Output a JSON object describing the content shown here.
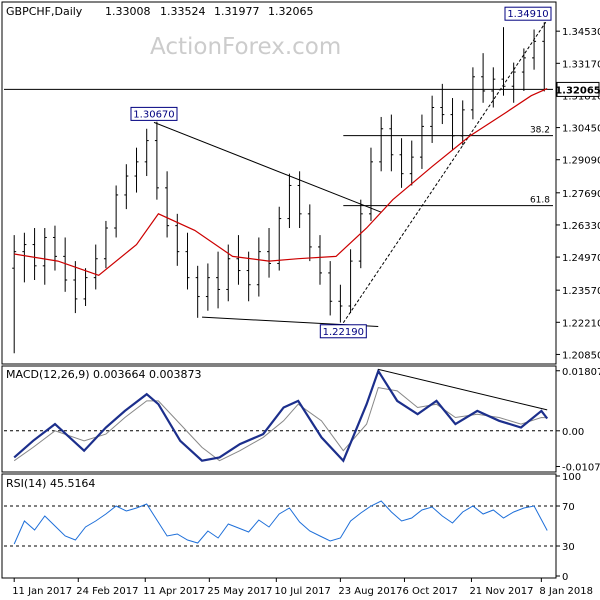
{
  "chart_data": [
    {
      "type": "candlestick",
      "title": "GBPCHF,Daily",
      "ohlc_header": [
        "1.33008",
        "1.33524",
        "1.31977",
        "1.32065"
      ],
      "watermark": "ActionForex.com",
      "y_ticks": [
        "1.34530",
        "1.33170",
        "1.31810",
        "1.30450",
        "1.29090",
        "1.27690",
        "1.26330",
        "1.24970",
        "1.23570",
        "1.22210",
        "1.20850"
      ],
      "y_tick_values": [
        1.3453,
        1.3317,
        1.3181,
        1.3045,
        1.2909,
        1.2769,
        1.2633,
        1.2497,
        1.2357,
        1.2221,
        1.2085
      ],
      "ylim": [
        1.2053,
        1.3568
      ],
      "current_price": "1.32065",
      "current_price_value": 1.32065,
      "high_labels": [
        {
          "text": "1.34910",
          "value": 1.3491,
          "date": "2018-01-11"
        },
        {
          "text": "1.30670",
          "value": 1.3067,
          "date": "2017-04-17"
        },
        {
          "text": "1.22190",
          "value": 1.2219,
          "date": "2017-08-25"
        }
      ],
      "fib_levels": [
        {
          "label": "38.2",
          "value": 1.3011,
          "start": "2017-08-25"
        },
        {
          "label": "61.8",
          "value": 1.2715,
          "start": "2017-08-25"
        }
      ],
      "trendlines": [
        {
          "style": "solid",
          "from": {
            "date": "2017-04-17",
            "value": 1.3067
          },
          "to": {
            "date": "2017-09-20",
            "value": 1.2687
          }
        },
        {
          "style": "solid",
          "from": {
            "date": "2017-05-20",
            "value": 1.2243
          },
          "to": {
            "date": "2017-09-18",
            "value": 1.2203
          }
        },
        {
          "style": "dashed",
          "from": {
            "date": "2017-08-25",
            "value": 1.2219
          },
          "to": {
            "date": "2018-01-11",
            "value": 1.3491
          }
        }
      ],
      "series": [
        {
          "name": "",
          "color": "#cc0000",
          "x": [
            "2017-01-11",
            "2017-02-10",
            "2017-03-10",
            "2017-04-05",
            "2017-04-20",
            "2017-05-15",
            "2017-06-10",
            "2017-07-05",
            "2017-07-25",
            "2017-08-20",
            "2017-09-10",
            "2017-09-28",
            "2017-10-25",
            "2017-11-20",
            "2017-12-15",
            "2018-01-01",
            "2018-01-12"
          ],
          "values": [
            1.251,
            1.248,
            1.242,
            1.255,
            1.268,
            1.261,
            1.25,
            1.248,
            1.249,
            1.25,
            1.262,
            1.274,
            1.288,
            1.301,
            1.311,
            1.318,
            1.321
          ]
        }
      ],
      "candles": [
        [
          "2017-01-11",
          1.245,
          1.259,
          1.209,
          1.252
        ],
        [
          "2017-01-18",
          1.252,
          1.26,
          1.239,
          1.255
        ],
        [
          "2017-01-25",
          1.255,
          1.262,
          1.24,
          1.246
        ],
        [
          "2017-02-01",
          1.246,
          1.262,
          1.238,
          1.258
        ],
        [
          "2017-02-08",
          1.258,
          1.263,
          1.244,
          1.25
        ],
        [
          "2017-02-15",
          1.25,
          1.258,
          1.235,
          1.24
        ],
        [
          "2017-02-22",
          1.24,
          1.248,
          1.226,
          1.232
        ],
        [
          "2017-03-01",
          1.232,
          1.245,
          1.229,
          1.241
        ],
        [
          "2017-03-08",
          1.241,
          1.255,
          1.236,
          1.249
        ],
        [
          "2017-03-15",
          1.249,
          1.265,
          1.245,
          1.262
        ],
        [
          "2017-03-22",
          1.262,
          1.28,
          1.258,
          1.276
        ],
        [
          "2017-03-29",
          1.276,
          1.289,
          1.27,
          1.284
        ],
        [
          "2017-04-05",
          1.284,
          1.296,
          1.277,
          1.29
        ],
        [
          "2017-04-12",
          1.29,
          1.304,
          1.284,
          1.299
        ],
        [
          "2017-04-19",
          1.299,
          1.307,
          1.274,
          1.279
        ],
        [
          "2017-04-26",
          1.279,
          1.286,
          1.258,
          1.263
        ],
        [
          "2017-05-03",
          1.263,
          1.268,
          1.246,
          1.252
        ],
        [
          "2017-05-10",
          1.252,
          1.26,
          1.236,
          1.241
        ],
        [
          "2017-05-17",
          1.241,
          1.246,
          1.224,
          1.233
        ],
        [
          "2017-05-24",
          1.233,
          1.247,
          1.227,
          1.241
        ],
        [
          "2017-05-31",
          1.241,
          1.252,
          1.228,
          1.236
        ],
        [
          "2017-06-07",
          1.236,
          1.255,
          1.231,
          1.249
        ],
        [
          "2017-06-14",
          1.249,
          1.259,
          1.238,
          1.244
        ],
        [
          "2017-06-21",
          1.244,
          1.252,
          1.231,
          1.238
        ],
        [
          "2017-06-28",
          1.238,
          1.258,
          1.233,
          1.252
        ],
        [
          "2017-07-05",
          1.252,
          1.262,
          1.241,
          1.247
        ],
        [
          "2017-07-12",
          1.247,
          1.271,
          1.244,
          1.266
        ],
        [
          "2017-07-19",
          1.266,
          1.285,
          1.262,
          1.28
        ],
        [
          "2017-07-26",
          1.28,
          1.286,
          1.262,
          1.268
        ],
        [
          "2017-08-02",
          1.268,
          1.272,
          1.248,
          1.254
        ],
        [
          "2017-08-09",
          1.254,
          1.259,
          1.238,
          1.243
        ],
        [
          "2017-08-16",
          1.243,
          1.248,
          1.225,
          1.231
        ],
        [
          "2017-08-23",
          1.231,
          1.238,
          1.222,
          1.229
        ],
        [
          "2017-08-30",
          1.229,
          1.253,
          1.226,
          1.248
        ],
        [
          "2017-09-06",
          1.248,
          1.274,
          1.245,
          1.268
        ],
        [
          "2017-09-13",
          1.268,
          1.296,
          1.265,
          1.29
        ],
        [
          "2017-09-20",
          1.29,
          1.309,
          1.286,
          1.304
        ],
        [
          "2017-09-27",
          1.304,
          1.31,
          1.286,
          1.293
        ],
        [
          "2017-10-04",
          1.293,
          1.3,
          1.279,
          1.285
        ],
        [
          "2017-10-11",
          1.285,
          1.299,
          1.28,
          1.292
        ],
        [
          "2017-10-18",
          1.292,
          1.31,
          1.287,
          1.305
        ],
        [
          "2017-10-25",
          1.305,
          1.318,
          1.298,
          1.313
        ],
        [
          "2017-11-01",
          1.313,
          1.323,
          1.306,
          1.31
        ],
        [
          "2017-11-08",
          1.31,
          1.317,
          1.295,
          1.301
        ],
        [
          "2017-11-15",
          1.301,
          1.316,
          1.297,
          1.312
        ],
        [
          "2017-11-22",
          1.312,
          1.33,
          1.308,
          1.326
        ],
        [
          "2017-11-29",
          1.326,
          1.336,
          1.315,
          1.32
        ],
        [
          "2017-12-06",
          1.32,
          1.33,
          1.313,
          1.325
        ],
        [
          "2017-12-13",
          1.325,
          1.347,
          1.318,
          1.322
        ],
        [
          "2017-12-20",
          1.322,
          1.332,
          1.315,
          1.328
        ],
        [
          "2017-12-27",
          1.328,
          1.338,
          1.32,
          1.334
        ],
        [
          "2018-01-03",
          1.334,
          1.346,
          1.329,
          1.341
        ],
        [
          "2018-01-10",
          1.341,
          1.3491,
          1.3198,
          1.3207
        ]
      ]
    },
    {
      "type": "line",
      "title": "MACD(12,26,9) 0.003664 0.003873",
      "y_ticks": [
        "0.018071",
        "0.00",
        "-0.01074"
      ],
      "y_tick_values": [
        0.018071,
        0.0,
        -0.01074
      ],
      "ylim": [
        -0.0118,
        0.0189
      ],
      "series": [
        {
          "name": "",
          "color": "#1c2f8c",
          "x": [
            "2017-01-11",
            "2017-01-24",
            "2017-02-08",
            "2017-02-28",
            "2017-03-15",
            "2017-03-28",
            "2017-04-12",
            "2017-04-20",
            "2017-05-05",
            "2017-05-20",
            "2017-06-01",
            "2017-06-15",
            "2017-07-01",
            "2017-07-15",
            "2017-07-25",
            "2017-08-10",
            "2017-08-25",
            "2017-09-10",
            "2017-09-18",
            "2017-10-01",
            "2017-10-15",
            "2017-10-28",
            "2017-11-10",
            "2017-11-25",
            "2017-12-10",
            "2017-12-25",
            "2018-01-08",
            "2018-01-12"
          ],
          "values": [
            -0.008,
            -0.003,
            0.002,
            -0.006,
            0.001,
            0.006,
            0.011,
            0.008,
            -0.003,
            -0.009,
            -0.008,
            -0.004,
            -0.001,
            0.007,
            0.009,
            -0.002,
            -0.009,
            0.008,
            0.018,
            0.009,
            0.005,
            0.009,
            0.002,
            0.006,
            0.003,
            0.001,
            0.006,
            0.0037
          ]
        },
        {
          "name": "",
          "color": "#888888",
          "x": [
            "2017-01-11",
            "2017-01-24",
            "2017-02-08",
            "2017-02-28",
            "2017-03-15",
            "2017-03-28",
            "2017-04-12",
            "2017-04-20",
            "2017-05-05",
            "2017-05-20",
            "2017-06-01",
            "2017-06-15",
            "2017-07-01",
            "2017-07-15",
            "2017-07-25",
            "2017-08-10",
            "2017-08-25",
            "2017-09-10",
            "2017-09-18",
            "2017-10-01",
            "2017-10-15",
            "2017-10-28",
            "2017-11-10",
            "2017-11-25",
            "2017-12-10",
            "2017-12-25",
            "2018-01-08",
            "2018-01-12"
          ],
          "values": [
            -0.009,
            -0.005,
            0.0,
            -0.003,
            -0.001,
            0.004,
            0.009,
            0.009,
            0.002,
            -0.005,
            -0.009,
            -0.006,
            -0.002,
            0.003,
            0.008,
            0.003,
            -0.006,
            0.002,
            0.013,
            0.012,
            0.007,
            0.008,
            0.004,
            0.005,
            0.004,
            0.002,
            0.004,
            0.0039
          ]
        }
      ],
      "trendlines": [
        {
          "style": "solid",
          "from": {
            "date": "2017-09-18",
            "value": 0.0185
          },
          "to": {
            "date": "2018-01-12",
            "value": 0.0063
          }
        }
      ]
    },
    {
      "type": "line",
      "title": "RSI(14) 45.5164",
      "y_ticks": [
        "100",
        "70",
        "30",
        "0"
      ],
      "y_tick_values": [
        100,
        70,
        30,
        0
      ],
      "ylim": [
        0,
        100
      ],
      "series": [
        {
          "name": "",
          "color": "#1e6fd9",
          "x": [
            "2017-01-11",
            "2017-01-18",
            "2017-01-25",
            "2017-02-01",
            "2017-02-08",
            "2017-02-15",
            "2017-02-22",
            "2017-03-01",
            "2017-03-08",
            "2017-03-15",
            "2017-03-22",
            "2017-03-29",
            "2017-04-05",
            "2017-04-12",
            "2017-04-19",
            "2017-04-26",
            "2017-05-03",
            "2017-05-10",
            "2017-05-17",
            "2017-05-24",
            "2017-05-31",
            "2017-06-07",
            "2017-06-14",
            "2017-06-21",
            "2017-06-28",
            "2017-07-05",
            "2017-07-12",
            "2017-07-19",
            "2017-07-26",
            "2017-08-02",
            "2017-08-09",
            "2017-08-16",
            "2017-08-23",
            "2017-08-30",
            "2017-09-06",
            "2017-09-13",
            "2017-09-20",
            "2017-09-27",
            "2017-10-04",
            "2017-10-11",
            "2017-10-18",
            "2017-10-25",
            "2017-11-01",
            "2017-11-08",
            "2017-11-15",
            "2017-11-22",
            "2017-11-29",
            "2017-12-06",
            "2017-12-13",
            "2017-12-20",
            "2017-12-27",
            "2018-01-03",
            "2018-01-12"
          ],
          "values": [
            32,
            55,
            46,
            60,
            50,
            40,
            36,
            49,
            55,
            62,
            70,
            65,
            68,
            72,
            56,
            40,
            42,
            36,
            33,
            45,
            38,
            52,
            48,
            44,
            56,
            49,
            62,
            68,
            54,
            45,
            40,
            35,
            38,
            55,
            63,
            70,
            75,
            64,
            55,
            58,
            66,
            69,
            60,
            53,
            64,
            70,
            62,
            66,
            58,
            64,
            68,
            70,
            45.5
          ]
        }
      ]
    }
  ],
  "x_axis_labels": [
    "11 Jan 2017",
    "24 Feb 2017",
    "11 Apr 2017",
    "25 May 2017",
    "10 Jul 2017",
    "23 Aug 2017",
    "6 Oct 2017",
    "21 Nov 2017",
    "8 Jan 2018"
  ],
  "x_axis_dates": [
    "2017-01-11",
    "2017-02-24",
    "2017-04-11",
    "2017-05-25",
    "2017-07-10",
    "2017-08-23",
    "2017-10-06",
    "2017-11-21",
    "2018-01-08"
  ]
}
